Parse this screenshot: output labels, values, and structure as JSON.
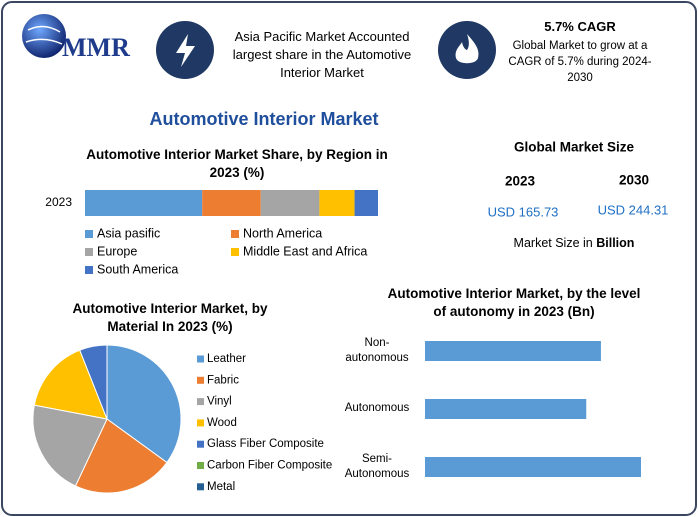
{
  "header": {
    "logo": "MMR",
    "fact1": "Asia Pacific Market Accounted largest share in the Automotive Interior Market",
    "fact2_title": "5.7% CAGR",
    "fact2": "Global Market to grow at a CAGR of 5.7% during 2024-2030"
  },
  "title": "Automotive Interior Market",
  "market_size": {
    "title": "Global Market Size",
    "years": [
      "2023",
      "2030"
    ],
    "values": [
      "USD 165.73",
      "USD 244.31"
    ],
    "note": "Market Size in",
    "note_unit": "Billion"
  },
  "chart_data": [
    {
      "type": "bar",
      "orientation": "horizontal",
      "stacked": true,
      "title": "Automotive Interior Market Share, by Region in 2023 (%)",
      "categories": [
        "2023"
      ],
      "series": [
        {
          "name": "Asia pasific",
          "color": "#5b9bd5",
          "values": [
            40
          ]
        },
        {
          "name": "North America",
          "color": "#ed7d31",
          "values": [
            20
          ]
        },
        {
          "name": "Europe",
          "color": "#a5a5a5",
          "values": [
            20
          ]
        },
        {
          "name": "Middle East and Africa",
          "color": "#ffc000",
          "values": [
            12
          ]
        },
        {
          "name": "South America",
          "color": "#4472c4",
          "values": [
            8
          ]
        }
      ]
    },
    {
      "type": "pie",
      "title": "Automotive Interior Market, by Material In 2023 (%)",
      "categories": [
        "Leather",
        "Fabric",
        "Vinyl",
        "Wood",
        "Glass Fiber Composite",
        "Carbon Fiber Composite",
        "Metal"
      ],
      "values": [
        35,
        22,
        21,
        16,
        6,
        0,
        0
      ],
      "colors": [
        "#5b9bd5",
        "#ed7d31",
        "#a5a5a5",
        "#ffc000",
        "#4472c4",
        "#70ad47",
        "#255e91"
      ]
    },
    {
      "type": "bar",
      "orientation": "horizontal",
      "title": "Automotive Interior Market, by the level of autonomy in 2023 (Bn)",
      "categories": [
        "Non-autonomous",
        "Autonomous",
        "Semi-Autonomous"
      ],
      "values": [
        52.7,
        48.3,
        64.7
      ],
      "color": "#5b9bd5"
    }
  ]
}
